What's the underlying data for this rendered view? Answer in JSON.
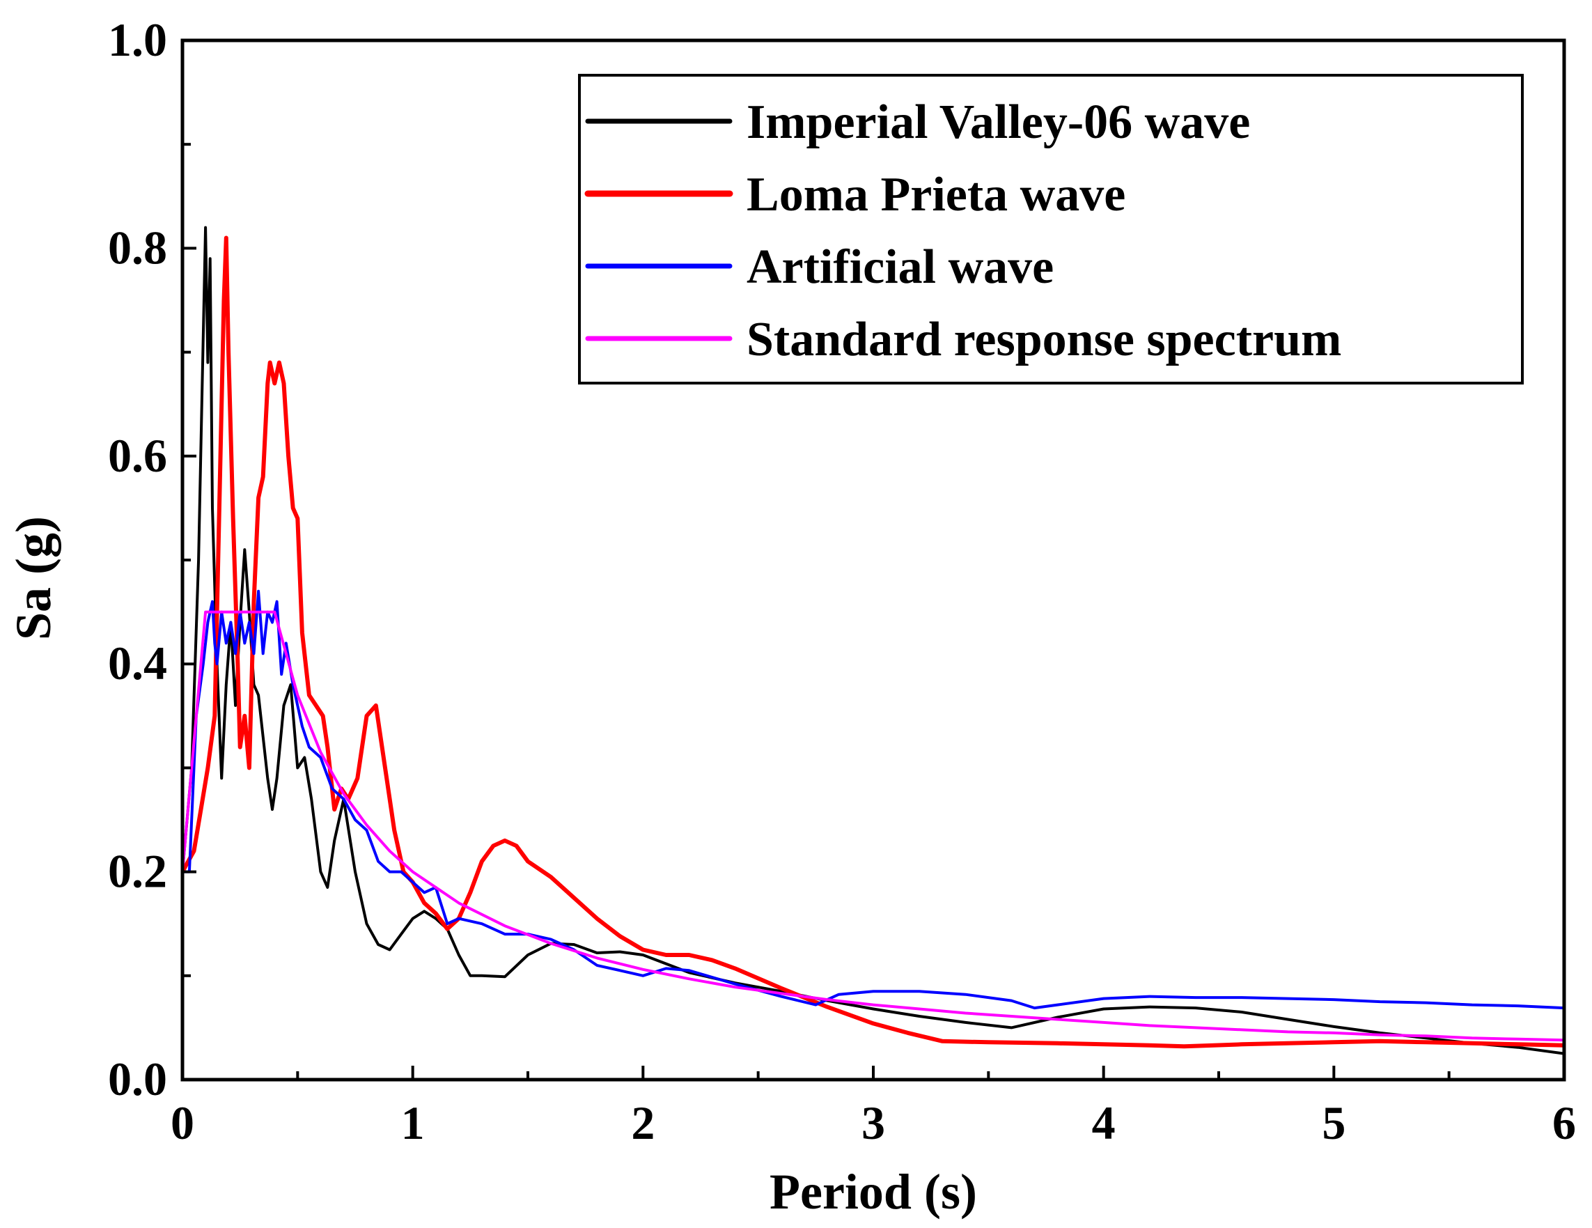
{
  "chart_data": {
    "type": "line",
    "title": "",
    "xlabel": "Period (s)",
    "ylabel": "Sa (g)",
    "xlim": [
      0,
      6
    ],
    "ylim": [
      0,
      1.0
    ],
    "xticks": [
      0,
      1,
      2,
      3,
      4,
      5,
      6
    ],
    "xtick_labels": [
      "0",
      "1",
      "2",
      "3",
      "4",
      "5",
      "6"
    ],
    "yticks": [
      0,
      0.2,
      0.4,
      0.6,
      0.8,
      1.0
    ],
    "ytick_labels": [
      "0.0",
      "0.2",
      "0.4",
      "0.6",
      "0.8",
      "1.0"
    ],
    "grid": false,
    "legend_position": "top-right",
    "series": [
      {
        "name": "Imperial Valley-06 wave",
        "color": "#000000",
        "width": 4,
        "x": [
          0,
          0.04,
          0.07,
          0.1,
          0.11,
          0.12,
          0.13,
          0.15,
          0.17,
          0.19,
          0.21,
          0.23,
          0.25,
          0.27,
          0.29,
          0.31,
          0.33,
          0.35,
          0.37,
          0.39,
          0.41,
          0.44,
          0.47,
          0.5,
          0.53,
          0.56,
          0.6,
          0.63,
          0.66,
          0.7,
          0.75,
          0.8,
          0.85,
          0.9,
          0.95,
          1.0,
          1.05,
          1.1,
          1.15,
          1.2,
          1.25,
          1.3,
          1.4,
          1.5,
          1.6,
          1.7,
          1.8,
          1.9,
          2.0,
          2.2,
          2.4,
          2.6,
          2.8,
          3.0,
          3.2,
          3.4,
          3.6,
          3.8,
          4.0,
          4.2,
          4.4,
          4.6,
          4.8,
          5.0,
          5.2,
          5.4,
          5.6,
          5.8,
          6.0
        ],
        "y": [
          0.2,
          0.3,
          0.5,
          0.82,
          0.69,
          0.79,
          0.55,
          0.4,
          0.29,
          0.38,
          0.44,
          0.36,
          0.44,
          0.51,
          0.45,
          0.38,
          0.37,
          0.33,
          0.29,
          0.26,
          0.29,
          0.36,
          0.38,
          0.3,
          0.31,
          0.27,
          0.2,
          0.185,
          0.23,
          0.27,
          0.2,
          0.15,
          0.13,
          0.125,
          0.14,
          0.155,
          0.162,
          0.155,
          0.145,
          0.12,
          0.1,
          0.1,
          0.099,
          0.12,
          0.131,
          0.13,
          0.122,
          0.123,
          0.12,
          0.103,
          0.093,
          0.085,
          0.076,
          0.068,
          0.061,
          0.055,
          0.05,
          0.06,
          0.068,
          0.07,
          0.069,
          0.065,
          0.058,
          0.051,
          0.045,
          0.04,
          0.035,
          0.031,
          0.025
        ]
      },
      {
        "name": "Loma Prieta wave",
        "color": "#ff0000",
        "width": 6,
        "x": [
          0,
          0.05,
          0.08,
          0.11,
          0.14,
          0.16,
          0.18,
          0.19,
          0.2,
          0.22,
          0.24,
          0.25,
          0.27,
          0.29,
          0.31,
          0.33,
          0.35,
          0.37,
          0.38,
          0.4,
          0.42,
          0.44,
          0.46,
          0.48,
          0.5,
          0.52,
          0.55,
          0.58,
          0.61,
          0.63,
          0.66,
          0.69,
          0.72,
          0.76,
          0.8,
          0.84,
          0.88,
          0.92,
          0.96,
          1.0,
          1.05,
          1.1,
          1.15,
          1.2,
          1.25,
          1.3,
          1.35,
          1.4,
          1.45,
          1.5,
          1.6,
          1.7,
          1.8,
          1.9,
          2.0,
          2.1,
          2.2,
          2.3,
          2.4,
          2.6,
          2.8,
          3.0,
          3.15,
          3.3,
          3.5,
          3.8,
          4.0,
          4.2,
          4.35,
          4.6,
          4.8,
          5.0,
          5.2,
          5.4,
          5.6,
          5.8,
          6.0
        ],
        "y": [
          0.2,
          0.22,
          0.26,
          0.3,
          0.35,
          0.55,
          0.75,
          0.81,
          0.7,
          0.54,
          0.4,
          0.32,
          0.35,
          0.3,
          0.46,
          0.56,
          0.58,
          0.67,
          0.69,
          0.67,
          0.69,
          0.67,
          0.6,
          0.55,
          0.54,
          0.43,
          0.37,
          0.36,
          0.35,
          0.32,
          0.26,
          0.28,
          0.27,
          0.29,
          0.35,
          0.36,
          0.3,
          0.24,
          0.2,
          0.19,
          0.17,
          0.16,
          0.145,
          0.155,
          0.18,
          0.21,
          0.225,
          0.23,
          0.225,
          0.21,
          0.195,
          0.175,
          0.155,
          0.138,
          0.125,
          0.12,
          0.12,
          0.115,
          0.107,
          0.088,
          0.07,
          0.054,
          0.045,
          0.037,
          0.036,
          0.035,
          0.034,
          0.033,
          0.032,
          0.034,
          0.035,
          0.036,
          0.037,
          0.036,
          0.035,
          0.034,
          0.033
        ]
      },
      {
        "name": "Artificial wave",
        "color": "#0000ff",
        "width": 4,
        "x": [
          0,
          0.03,
          0.06,
          0.09,
          0.11,
          0.13,
          0.14,
          0.15,
          0.17,
          0.19,
          0.21,
          0.23,
          0.25,
          0.27,
          0.29,
          0.31,
          0.33,
          0.35,
          0.37,
          0.39,
          0.41,
          0.43,
          0.45,
          0.48,
          0.52,
          0.55,
          0.6,
          0.65,
          0.7,
          0.75,
          0.8,
          0.85,
          0.9,
          0.95,
          1.0,
          1.05,
          1.1,
          1.15,
          1.2,
          1.3,
          1.4,
          1.5,
          1.6,
          1.7,
          1.8,
          1.9,
          2.0,
          2.1,
          2.2,
          2.4,
          2.6,
          2.75,
          2.85,
          3.0,
          3.2,
          3.4,
          3.6,
          3.7,
          3.8,
          4.0,
          4.2,
          4.4,
          4.6,
          4.8,
          5.0,
          5.2,
          5.4,
          5.6,
          5.8,
          6.0
        ],
        "y": [
          0.2,
          0.2,
          0.35,
          0.4,
          0.44,
          0.46,
          0.42,
          0.4,
          0.45,
          0.42,
          0.44,
          0.41,
          0.45,
          0.42,
          0.44,
          0.41,
          0.47,
          0.41,
          0.45,
          0.44,
          0.46,
          0.39,
          0.42,
          0.38,
          0.34,
          0.32,
          0.31,
          0.28,
          0.27,
          0.25,
          0.24,
          0.21,
          0.2,
          0.2,
          0.19,
          0.18,
          0.185,
          0.15,
          0.155,
          0.15,
          0.14,
          0.14,
          0.135,
          0.125,
          0.11,
          0.105,
          0.1,
          0.107,
          0.105,
          0.092,
          0.08,
          0.072,
          0.082,
          0.085,
          0.085,
          0.082,
          0.076,
          0.069,
          0.072,
          0.078,
          0.08,
          0.079,
          0.079,
          0.078,
          0.077,
          0.075,
          0.074,
          0.072,
          0.071,
          0.069
        ]
      },
      {
        "name": "Standard response spectrum",
        "color": "#ff00ff",
        "width": 4,
        "x": [
          0,
          0.05,
          0.1,
          0.2,
          0.3,
          0.4,
          0.5,
          0.6,
          0.7,
          0.8,
          0.9,
          1.0,
          1.2,
          1.4,
          1.6,
          1.8,
          2.0,
          2.2,
          2.4,
          2.6,
          2.8,
          3.0,
          3.2,
          3.4,
          3.6,
          3.8,
          4.0,
          4.2,
          4.4,
          4.6,
          4.8,
          5.0,
          5.2,
          5.4,
          5.6,
          5.8,
          6.0
        ],
        "y": [
          0.2,
          0.325,
          0.45,
          0.45,
          0.45,
          0.45,
          0.37,
          0.315,
          0.275,
          0.245,
          0.22,
          0.2,
          0.17,
          0.148,
          0.131,
          0.117,
          0.106,
          0.097,
          0.089,
          0.083,
          0.077,
          0.072,
          0.068,
          0.064,
          0.061,
          0.058,
          0.055,
          0.052,
          0.05,
          0.048,
          0.046,
          0.045,
          0.043,
          0.042,
          0.04,
          0.039,
          0.038
        ]
      }
    ]
  }
}
